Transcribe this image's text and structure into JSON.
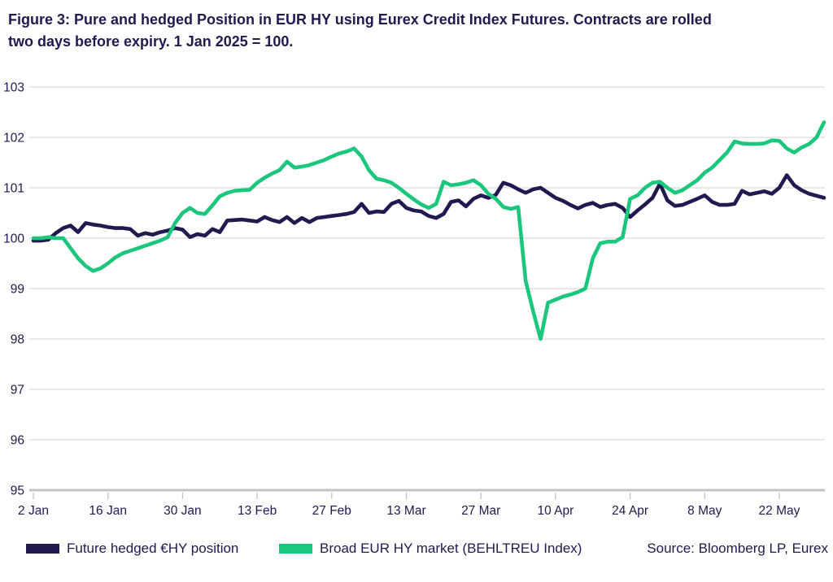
{
  "title": {
    "line1": "Figure 3: Pure and hedged Position in EUR HY using Eurex Credit Index Futures. Contracts are rolled",
    "line2": "two days before expiry. 1 Jan 2025 = 100."
  },
  "source": "Source: Bloomberg LP, Eurex",
  "chart_data": {
    "type": "line",
    "title": "Figure 3: Pure and hedged Position in EUR HY using Eurex Credit Index Futures. Contracts are rolled two days before expiry. 1 Jan 2025 = 100.",
    "xlabel": "",
    "ylabel": "",
    "ylim": [
      95,
      103
    ],
    "grid": "horizontal",
    "legend_position": "bottom",
    "y_ticks": [
      103,
      102,
      101,
      100,
      99,
      98,
      97,
      96,
      95
    ],
    "x_ticks": [
      "2 Jan",
      "16 Jan",
      "30 Jan",
      "13 Feb",
      "27 Feb",
      "13 Mar",
      "27 Mar",
      "10 Apr",
      "24 Apr",
      "8 May",
      "22 May"
    ],
    "x_tick_every_n_points": 10,
    "series": [
      {
        "name": "Future hedged €HY position",
        "color": "#201a51",
        "values": [
          99.95,
          99.95,
          99.97,
          100.1,
          100.2,
          100.25,
          100.12,
          100.3,
          100.27,
          100.25,
          100.22,
          100.2,
          100.2,
          100.18,
          100.05,
          100.1,
          100.07,
          100.12,
          100.15,
          100.2,
          100.17,
          100.02,
          100.08,
          100.05,
          100.18,
          100.12,
          100.35,
          100.36,
          100.37,
          100.35,
          100.33,
          100.42,
          100.36,
          100.32,
          100.42,
          100.3,
          100.4,
          100.32,
          100.4,
          100.42,
          100.44,
          100.46,
          100.48,
          100.52,
          100.68,
          100.5,
          100.53,
          100.52,
          100.68,
          100.74,
          100.6,
          100.55,
          100.53,
          100.44,
          100.4,
          100.48,
          100.72,
          100.75,
          100.63,
          100.78,
          100.85,
          100.8,
          100.86,
          101.1,
          101.05,
          100.97,
          100.9,
          100.97,
          101.0,
          100.9,
          100.8,
          100.74,
          100.66,
          100.59,
          100.66,
          100.7,
          100.62,
          100.66,
          100.68,
          100.6,
          100.42,
          100.55,
          100.67,
          100.8,
          101.08,
          100.75,
          100.64,
          100.66,
          100.72,
          100.78,
          100.85,
          100.72,
          100.66,
          100.66,
          100.68,
          100.94,
          100.87,
          100.9,
          100.93,
          100.88,
          101.0,
          101.25,
          101.05,
          100.95,
          100.88,
          100.84,
          100.8
        ]
      },
      {
        "name": "Broad EUR HY market (BEHLTREU Index)",
        "color": "#1bc77c",
        "values": [
          100.0,
          100.0,
          100.02,
          100.0,
          100.0,
          99.8,
          99.6,
          99.45,
          99.35,
          99.4,
          99.5,
          99.62,
          99.7,
          99.75,
          99.8,
          99.85,
          99.9,
          99.95,
          100.02,
          100.3,
          100.5,
          100.6,
          100.5,
          100.48,
          100.65,
          100.83,
          100.9,
          100.94,
          100.95,
          100.96,
          101.1,
          101.2,
          101.28,
          101.35,
          101.52,
          101.4,
          101.42,
          101.45,
          101.5,
          101.55,
          101.62,
          101.68,
          101.72,
          101.78,
          101.62,
          101.35,
          101.18,
          101.15,
          101.1,
          101.0,
          100.88,
          100.77,
          100.67,
          100.6,
          100.68,
          101.12,
          101.05,
          101.07,
          101.1,
          101.15,
          101.05,
          100.88,
          100.78,
          100.62,
          100.58,
          100.62,
          99.15,
          98.55,
          98.0,
          98.72,
          98.78,
          98.84,
          98.88,
          98.93,
          99.0,
          99.6,
          99.9,
          99.93,
          99.93,
          100.02,
          100.78,
          100.85,
          101.0,
          101.1,
          101.12,
          101.0,
          100.9,
          100.95,
          101.05,
          101.15,
          101.3,
          101.4,
          101.55,
          101.7,
          101.92,
          101.88,
          101.87,
          101.87,
          101.88,
          101.94,
          101.93,
          101.78,
          101.7,
          101.8,
          101.87,
          102.0,
          102.3
        ]
      }
    ]
  }
}
